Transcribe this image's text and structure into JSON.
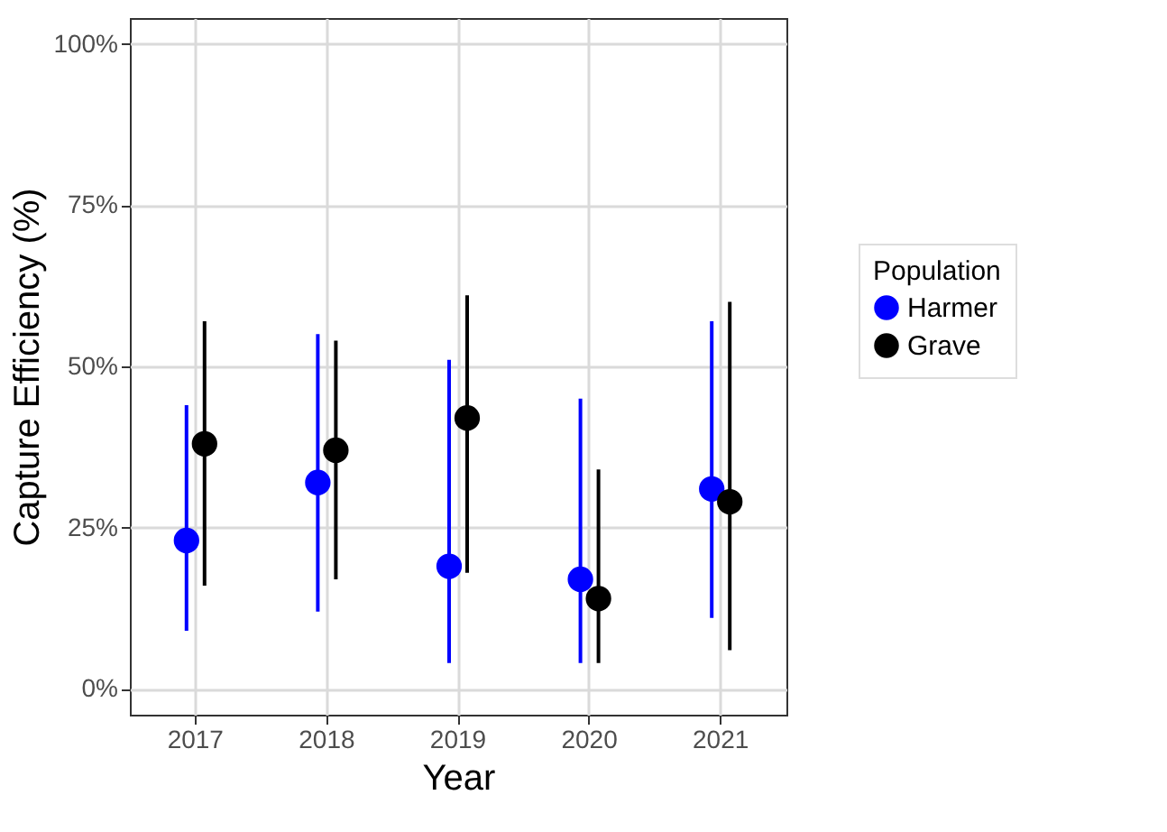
{
  "chart_data": {
    "type": "scatter",
    "ylabel": "Capture Efficiency (%)",
    "xlabel": "Year",
    "legend_title": "Population",
    "categories": [
      "2017",
      "2018",
      "2019",
      "2020",
      "2021"
    ],
    "series": [
      {
        "name": "Harmer",
        "color": "#0000ff",
        "values": [
          23,
          32,
          19,
          17,
          31
        ],
        "errors": [
          [
            9,
            44
          ],
          [
            12,
            55
          ],
          [
            4,
            51
          ],
          [
            4,
            45
          ],
          [
            11,
            57
          ]
        ]
      },
      {
        "name": "Grave",
        "color": "#000000",
        "values": [
          38,
          37,
          42,
          14,
          29
        ],
        "errors": [
          [
            16,
            57
          ],
          [
            17,
            54
          ],
          [
            18,
            61
          ],
          [
            4,
            34
          ],
          [
            6,
            60
          ]
        ]
      }
    ],
    "ylim": [
      -4,
      104
    ],
    "yticks": [
      {
        "value": 0,
        "label": "0%"
      },
      {
        "value": 25,
        "label": "25%"
      },
      {
        "value": 50,
        "label": "50%"
      },
      {
        "value": 75,
        "label": "75%"
      },
      {
        "value": 100,
        "label": "100%"
      }
    ],
    "grid": true,
    "legend": "right",
    "marker": "circle"
  }
}
